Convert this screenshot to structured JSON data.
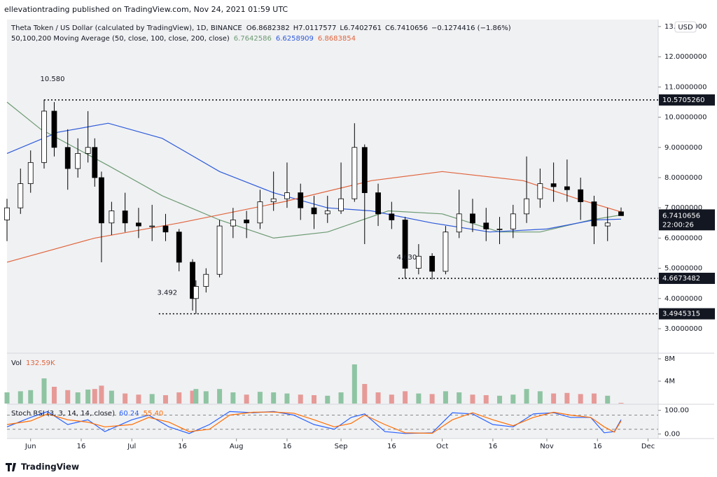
{
  "chart_data": {
    "type": "candlestick",
    "publisher_note": "ellevationtrading published on TradingView.com, Nov 24, 2021 01:59 UTC",
    "title": "Theta Token / US Dollar (calculated by TradingView), 1D, BINANCE",
    "ohlc_prefixes": [
      "O",
      "H",
      "L",
      "C"
    ],
    "change_label": "−0.1274416 (−1.86%)",
    "x": [
      "2021-05-25",
      "2021-05-29",
      "2021-06-01",
      "2021-06-05",
      "2021-06-08",
      "2021-06-12",
      "2021-06-15",
      "2021-06-18",
      "2021-06-20",
      "2021-06-22",
      "2021-06-25",
      "2021-06-29",
      "2021-07-03",
      "2021-07-07",
      "2021-07-11",
      "2021-07-15",
      "2021-07-19",
      "2021-07-20",
      "2021-07-23",
      "2021-07-27",
      "2021-07-31",
      "2021-08-04",
      "2021-08-08",
      "2021-08-12",
      "2021-08-16",
      "2021-08-20",
      "2021-08-24",
      "2021-08-28",
      "2021-09-01",
      "2021-09-05",
      "2021-09-08",
      "2021-09-12",
      "2021-09-16",
      "2021-09-20",
      "2021-09-24",
      "2021-09-28",
      "2021-10-02",
      "2021-10-06",
      "2021-10-10",
      "2021-10-14",
      "2021-10-18",
      "2021-10-22",
      "2021-10-26",
      "2021-10-30",
      "2021-11-03",
      "2021-11-07",
      "2021-11-11",
      "2021-11-15",
      "2021-11-19",
      "2021-11-23"
    ],
    "open": [
      6.6,
      7.0,
      7.8,
      8.5,
      10.2,
      9.0,
      8.3,
      8.8,
      9.0,
      8.0,
      6.5,
      6.9,
      6.5,
      6.4,
      6.4,
      6.2,
      5.2,
      4.0,
      4.4,
      4.8,
      6.4,
      6.6,
      6.5,
      7.2,
      7.3,
      7.5,
      7.0,
      6.8,
      6.9,
      7.3,
      9.0,
      7.5,
      6.8,
      6.6,
      5.0,
      5.4,
      4.9,
      6.2,
      6.8,
      6.5,
      6.3,
      6.3,
      6.8,
      7.3,
      7.8,
      7.7,
      7.6,
      7.2,
      6.4,
      6.8682382
    ],
    "high": [
      7.3,
      8.3,
      8.9,
      10.58,
      10.5,
      9.6,
      9.3,
      10.2,
      9.3,
      8.2,
      7.2,
      7.5,
      7.0,
      7.1,
      6.8,
      6.3,
      5.3,
      4.6,
      5.0,
      6.6,
      7.0,
      6.9,
      7.6,
      8.2,
      8.5,
      7.8,
      7.4,
      7.4,
      8.5,
      9.8,
      9.1,
      7.8,
      7.2,
      6.7,
      5.8,
      5.5,
      6.4,
      7.6,
      7.3,
      7.0,
      6.7,
      7.1,
      8.7,
      8.3,
      8.5,
      8.6,
      8.0,
      7.4,
      7.0,
      7.0117577
    ],
    "low": [
      5.9,
      6.8,
      7.5,
      8.3,
      8.7,
      7.6,
      8.0,
      8.5,
      7.7,
      5.2,
      6.1,
      6.2,
      6.0,
      5.9,
      5.9,
      4.9,
      3.6,
      3.49,
      4.2,
      4.7,
      6.0,
      6.0,
      6.3,
      6.9,
      7.0,
      6.6,
      6.3,
      6.5,
      6.8,
      7.2,
      5.8,
      6.4,
      6.3,
      4.66,
      4.8,
      4.63,
      4.8,
      6.0,
      6.2,
      5.9,
      5.8,
      6.0,
      6.5,
      7.0,
      7.2,
      7.2,
      6.6,
      5.8,
      5.9,
      6.7402761
    ],
    "close": [
      7.0,
      7.8,
      8.5,
      10.2,
      9.0,
      8.3,
      8.8,
      9.0,
      8.0,
      6.5,
      6.9,
      6.5,
      6.4,
      6.4,
      6.2,
      5.2,
      4.0,
      4.4,
      4.8,
      6.4,
      6.6,
      6.5,
      7.2,
      7.3,
      7.5,
      7.0,
      6.8,
      6.9,
      7.3,
      9.0,
      7.5,
      6.8,
      6.6,
      5.0,
      5.4,
      4.9,
      6.2,
      6.8,
      6.5,
      6.3,
      6.3,
      6.8,
      7.3,
      7.8,
      7.7,
      7.6,
      7.2,
      6.4,
      6.5,
      6.7410656
    ],
    "up_color": "#ffffff",
    "down_color": "#000000",
    "ylim": [
      2.19,
      13.23
    ],
    "yticks": [
      {
        "value": 3,
        "label": "3.0000000"
      },
      {
        "value": 4,
        "label": "4.0000000"
      },
      {
        "value": 5,
        "label": "5.0000000"
      },
      {
        "value": 6,
        "label": "6.0000000"
      },
      {
        "value": 7,
        "label": "7.0000000"
      },
      {
        "value": 8,
        "label": "8.0000000"
      },
      {
        "value": 9,
        "label": "9.0000000"
      },
      {
        "value": 10,
        "label": "10.0000000"
      },
      {
        "value": 11,
        "label": "11.0000000"
      },
      {
        "value": 12,
        "label": "12.0000000"
      },
      {
        "value": 13,
        "label": "13.0000000"
      }
    ],
    "xlim": [
      "2021-05-25",
      "2021-12-04"
    ],
    "xticks": [
      {
        "value": "2021-06-01",
        "label": "Jun"
      },
      {
        "value": "2021-06-16",
        "label": "16"
      },
      {
        "value": "2021-07-01",
        "label": "Jul"
      },
      {
        "value": "2021-07-16",
        "label": "16"
      },
      {
        "value": "2021-08-01",
        "label": "Aug"
      },
      {
        "value": "2021-08-16",
        "label": "16"
      },
      {
        "value": "2021-09-01",
        "label": "Sep"
      },
      {
        "value": "2021-09-16",
        "label": "16"
      },
      {
        "value": "2021-10-01",
        "label": "Oct"
      },
      {
        "value": "2021-10-16",
        "label": "16"
      },
      {
        "value": "2021-11-01",
        "label": "Nov"
      },
      {
        "value": "2021-11-16",
        "label": "16"
      },
      {
        "value": "2021-12-01",
        "label": "Dec"
      }
    ],
    "currency": "USD",
    "countdown": "22:00:26",
    "levels": [
      {
        "value": 10.570526,
        "label": "10.5705260",
        "note": "10.580",
        "start": "2021-06-05"
      },
      {
        "value": 4.6673482,
        "label": "4.6673482",
        "note": "4.630",
        "start": "2021-09-18"
      },
      {
        "value": 3.4945315,
        "label": "3.4945315",
        "note": "3.492",
        "start": "2021-07-09"
      }
    ],
    "ma_title": "50,100,200 Moving Average (50, close, 100, close, 200, close)",
    "moving_averages": [
      {
        "color": "#6b9a72",
        "x": [
          "2021-05-25",
          "2021-06-04",
          "2021-06-24",
          "2021-07-10",
          "2021-07-27",
          "2021-08-12",
          "2021-08-28",
          "2021-09-15",
          "2021-10-01",
          "2021-10-18",
          "2021-10-30",
          "2021-11-14",
          "2021-11-23"
        ],
        "values": [
          10.5,
          9.6,
          8.4,
          7.4,
          6.6,
          6.0,
          6.2,
          6.9,
          6.8,
          6.2,
          6.2,
          6.6,
          6.7642586
        ]
      },
      {
        "color": "#2e5bd9",
        "x": [
          "2021-05-25",
          "2021-06-09",
          "2021-06-24",
          "2021-07-10",
          "2021-07-27",
          "2021-08-12",
          "2021-08-28",
          "2021-09-10",
          "2021-09-28",
          "2021-10-15",
          "2021-11-01",
          "2021-11-15",
          "2021-11-23"
        ],
        "values": [
          8.8,
          9.5,
          9.8,
          9.3,
          8.2,
          7.5,
          7.0,
          6.9,
          6.5,
          6.2,
          6.3,
          6.6,
          6.6258909
        ]
      },
      {
        "color": "#e0643c",
        "x": [
          "2021-05-25",
          "2021-06-20",
          "2021-07-15",
          "2021-08-15",
          "2021-09-10",
          "2021-10-01",
          "2021-10-25",
          "2021-11-10",
          "2021-11-23"
        ],
        "values": [
          5.2,
          6.0,
          6.5,
          7.2,
          7.9,
          8.2,
          7.9,
          7.3,
          6.8683854
        ]
      }
    ],
    "volume": {
      "title": "Vol",
      "values": [
        2.0,
        2.2,
        2.4,
        4.5,
        3.0,
        2.4,
        2.0,
        2.5,
        2.6,
        3.2,
        2.3,
        1.8,
        1.6,
        1.7,
        1.5,
        2.0,
        2.3,
        2.6,
        2.2,
        2.6,
        2.0,
        1.6,
        2.1,
        2.0,
        1.8,
        1.6,
        1.5,
        1.4,
        2.0,
        7.0,
        3.5,
        2.0,
        1.6,
        2.2,
        1.8,
        1.7,
        2.2,
        2.0,
        1.6,
        1.5,
        1.4,
        1.6,
        2.6,
        2.2,
        1.8,
        1.9,
        1.7,
        1.8,
        1.4,
        0.13259
      ],
      "value_labels": [
        null,
        null,
        null,
        null,
        null,
        null,
        null,
        null,
        null,
        null,
        null,
        null,
        null,
        null,
        null,
        null,
        null,
        null,
        null,
        null,
        null,
        null,
        null,
        null,
        null,
        null,
        null,
        null,
        null,
        null,
        null,
        null,
        null,
        null,
        null,
        null,
        null,
        null,
        null,
        null,
        null,
        null,
        null,
        null,
        null,
        null,
        null,
        null,
        null,
        "132.59K"
      ],
      "up_color": "#8fc4a3",
      "down_color": "#e69a97",
      "ylim": [
        0,
        9
      ],
      "yticks": [
        {
          "value": 4,
          "label": "4M"
        },
        {
          "value": 8,
          "label": "8M"
        }
      ]
    },
    "stoch_rsi": {
      "title": "Stoch RSI (3, 3, 14, 14, close)",
      "x": [
        "2021-05-25",
        "2021-06-01",
        "2021-06-06",
        "2021-06-12",
        "2021-06-18",
        "2021-06-23",
        "2021-07-01",
        "2021-07-06",
        "2021-07-12",
        "2021-07-18",
        "2021-07-24",
        "2021-07-30",
        "2021-08-06",
        "2021-08-12",
        "2021-08-18",
        "2021-08-24",
        "2021-08-30",
        "2021-09-04",
        "2021-09-08",
        "2021-09-14",
        "2021-09-20",
        "2021-09-28",
        "2021-10-04",
        "2021-10-10",
        "2021-10-16",
        "2021-10-22",
        "2021-10-28",
        "2021-11-03",
        "2021-11-08",
        "2021-11-14",
        "2021-11-18",
        "2021-11-21",
        "2021-11-23"
      ],
      "series": [
        {
          "color": "#2962ff",
          "values": [
            30,
            70,
            95,
            40,
            60,
            10,
            60,
            80,
            30,
            2,
            40,
            95,
            90,
            95,
            80,
            40,
            20,
            70,
            85,
            10,
            2,
            5,
            90,
            85,
            40,
            30,
            85,
            90,
            70,
            70,
            5,
            10,
            60.24
          ]
        },
        {
          "color": "#ff6d00",
          "values": [
            40,
            55,
            85,
            60,
            50,
            30,
            40,
            70,
            50,
            10,
            20,
            80,
            92,
            93,
            88,
            60,
            30,
            45,
            80,
            40,
            5,
            3,
            60,
            90,
            60,
            35,
            70,
            92,
            80,
            70,
            30,
            8,
            55.4
          ],
          "value_labels": [
            null,
            null,
            null,
            null,
            null,
            null,
            null,
            null,
            null,
            null,
            null,
            null,
            null,
            null,
            null,
            null,
            null,
            null,
            null,
            null,
            null,
            null,
            null,
            null,
            null,
            null,
            null,
            null,
            null,
            null,
            null,
            null,
            "55.40"
          ]
        }
      ],
      "ylim": [
        -19.35,
        125.8
      ],
      "yticks": [
        {
          "value": 0,
          "label": "0.00"
        },
        {
          "value": 100,
          "label": "100.00"
        }
      ],
      "levels": [
        20,
        80
      ]
    },
    "footer": "TradingView"
  }
}
